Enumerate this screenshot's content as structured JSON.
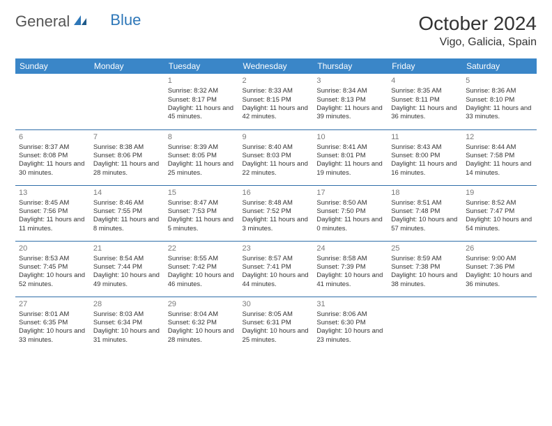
{
  "logo": {
    "part1": "General",
    "part2": "Blue"
  },
  "title": "October 2024",
  "location": "Vigo, Galicia, Spain",
  "colors": {
    "header_bg": "#3a86c8",
    "header_text": "#ffffff",
    "row_border": "#2e6da8",
    "daynum": "#7a7a7a",
    "text": "#333333",
    "logo_gray": "#555555",
    "logo_blue": "#2e77b8"
  },
  "weekdays": [
    "Sunday",
    "Monday",
    "Tuesday",
    "Wednesday",
    "Thursday",
    "Friday",
    "Saturday"
  ],
  "weeks": [
    [
      null,
      null,
      {
        "n": "1",
        "sr": "8:32 AM",
        "ss": "8:17 PM",
        "dl": "11 hours and 45 minutes."
      },
      {
        "n": "2",
        "sr": "8:33 AM",
        "ss": "8:15 PM",
        "dl": "11 hours and 42 minutes."
      },
      {
        "n": "3",
        "sr": "8:34 AM",
        "ss": "8:13 PM",
        "dl": "11 hours and 39 minutes."
      },
      {
        "n": "4",
        "sr": "8:35 AM",
        "ss": "8:11 PM",
        "dl": "11 hours and 36 minutes."
      },
      {
        "n": "5",
        "sr": "8:36 AM",
        "ss": "8:10 PM",
        "dl": "11 hours and 33 minutes."
      }
    ],
    [
      {
        "n": "6",
        "sr": "8:37 AM",
        "ss": "8:08 PM",
        "dl": "11 hours and 30 minutes."
      },
      {
        "n": "7",
        "sr": "8:38 AM",
        "ss": "8:06 PM",
        "dl": "11 hours and 28 minutes."
      },
      {
        "n": "8",
        "sr": "8:39 AM",
        "ss": "8:05 PM",
        "dl": "11 hours and 25 minutes."
      },
      {
        "n": "9",
        "sr": "8:40 AM",
        "ss": "8:03 PM",
        "dl": "11 hours and 22 minutes."
      },
      {
        "n": "10",
        "sr": "8:41 AM",
        "ss": "8:01 PM",
        "dl": "11 hours and 19 minutes."
      },
      {
        "n": "11",
        "sr": "8:43 AM",
        "ss": "8:00 PM",
        "dl": "11 hours and 16 minutes."
      },
      {
        "n": "12",
        "sr": "8:44 AM",
        "ss": "7:58 PM",
        "dl": "11 hours and 14 minutes."
      }
    ],
    [
      {
        "n": "13",
        "sr": "8:45 AM",
        "ss": "7:56 PM",
        "dl": "11 hours and 11 minutes."
      },
      {
        "n": "14",
        "sr": "8:46 AM",
        "ss": "7:55 PM",
        "dl": "11 hours and 8 minutes."
      },
      {
        "n": "15",
        "sr": "8:47 AM",
        "ss": "7:53 PM",
        "dl": "11 hours and 5 minutes."
      },
      {
        "n": "16",
        "sr": "8:48 AM",
        "ss": "7:52 PM",
        "dl": "11 hours and 3 minutes."
      },
      {
        "n": "17",
        "sr": "8:50 AM",
        "ss": "7:50 PM",
        "dl": "11 hours and 0 minutes."
      },
      {
        "n": "18",
        "sr": "8:51 AM",
        "ss": "7:48 PM",
        "dl": "10 hours and 57 minutes."
      },
      {
        "n": "19",
        "sr": "8:52 AM",
        "ss": "7:47 PM",
        "dl": "10 hours and 54 minutes."
      }
    ],
    [
      {
        "n": "20",
        "sr": "8:53 AM",
        "ss": "7:45 PM",
        "dl": "10 hours and 52 minutes."
      },
      {
        "n": "21",
        "sr": "8:54 AM",
        "ss": "7:44 PM",
        "dl": "10 hours and 49 minutes."
      },
      {
        "n": "22",
        "sr": "8:55 AM",
        "ss": "7:42 PM",
        "dl": "10 hours and 46 minutes."
      },
      {
        "n": "23",
        "sr": "8:57 AM",
        "ss": "7:41 PM",
        "dl": "10 hours and 44 minutes."
      },
      {
        "n": "24",
        "sr": "8:58 AM",
        "ss": "7:39 PM",
        "dl": "10 hours and 41 minutes."
      },
      {
        "n": "25",
        "sr": "8:59 AM",
        "ss": "7:38 PM",
        "dl": "10 hours and 38 minutes."
      },
      {
        "n": "26",
        "sr": "9:00 AM",
        "ss": "7:36 PM",
        "dl": "10 hours and 36 minutes."
      }
    ],
    [
      {
        "n": "27",
        "sr": "8:01 AM",
        "ss": "6:35 PM",
        "dl": "10 hours and 33 minutes."
      },
      {
        "n": "28",
        "sr": "8:03 AM",
        "ss": "6:34 PM",
        "dl": "10 hours and 31 minutes."
      },
      {
        "n": "29",
        "sr": "8:04 AM",
        "ss": "6:32 PM",
        "dl": "10 hours and 28 minutes."
      },
      {
        "n": "30",
        "sr": "8:05 AM",
        "ss": "6:31 PM",
        "dl": "10 hours and 25 minutes."
      },
      {
        "n": "31",
        "sr": "8:06 AM",
        "ss": "6:30 PM",
        "dl": "10 hours and 23 minutes."
      },
      null,
      null
    ]
  ],
  "labels": {
    "sunrise": "Sunrise: ",
    "sunset": "Sunset: ",
    "daylight": "Daylight: "
  }
}
